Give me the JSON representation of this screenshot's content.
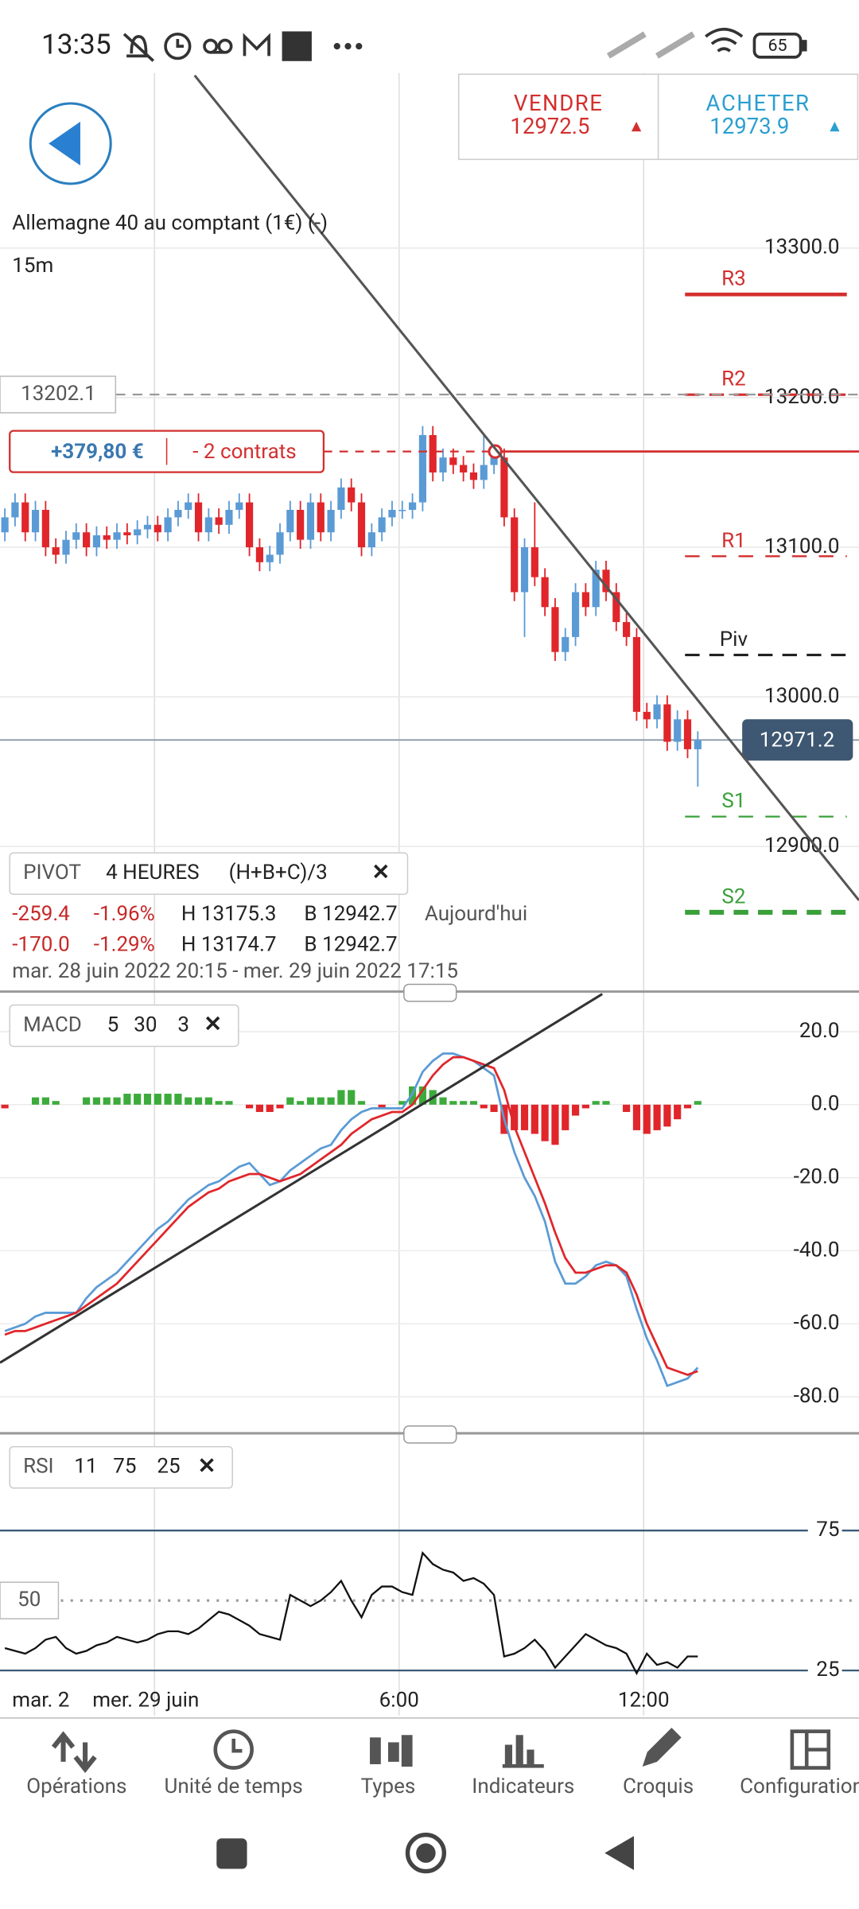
{
  "status_bar": {
    "time": "13:35",
    "battery": 65
  },
  "trade": {
    "sell_label": "VENDRE",
    "sell_price": 12972.5,
    "buy_label": "ACHETER",
    "buy_price": 12973.9
  },
  "chart": {
    "type": "candlestick",
    "title": "Allemagne 40 au comptant (1€) (-)",
    "timeframe": "15m",
    "ylim": [
      12803,
      13417
    ],
    "yticks": [
      {
        "value": 13300,
        "label": "13300.0"
      },
      {
        "value": 13200,
        "label": "13200.0"
      },
      {
        "value": 13100,
        "label": "13100.0"
      },
      {
        "value": 13000,
        "label": "13000.0"
      },
      {
        "value": 12900,
        "label": "12900.0"
      }
    ],
    "up_color": "#5b9bd5",
    "down_color": "#e0262b",
    "candles": {
      "open": [
        13110,
        13120,
        13130,
        13110,
        13125,
        13100,
        13095,
        13105,
        13110,
        13100,
        13108,
        13105,
        13110,
        13108,
        13112,
        13115,
        13110,
        13120,
        13125,
        13130,
        13110,
        13120,
        13115,
        13125,
        13130,
        13100,
        13090,
        13095,
        13110,
        13125,
        13105,
        13130,
        13110,
        13125,
        13140,
        13130,
        13100,
        13110,
        13120,
        13125,
        13125,
        13130,
        13175,
        13150,
        13160,
        13155,
        13150,
        13145,
        13155,
        13160,
        13120,
        13070,
        13100,
        13080,
        13060,
        13030,
        13040,
        13070,
        13060,
        13085,
        13070,
        13050,
        13040,
        12990,
        12985,
        12995,
        12970,
        12985,
        12965
      ],
      "high": [
        13126,
        13136,
        13136,
        13131,
        13131,
        13106,
        13111,
        13116,
        13116,
        13114,
        13114,
        13116,
        13116,
        13118,
        13121,
        13121,
        13126,
        13131,
        13136,
        13136,
        13126,
        13126,
        13131,
        13136,
        13136,
        13106,
        13101,
        13116,
        13131,
        13131,
        13136,
        13136,
        13131,
        13146,
        13146,
        13136,
        13116,
        13126,
        13131,
        13131,
        13136,
        13181,
        13181,
        13166,
        13166,
        13161,
        13156,
        13175,
        13166,
        13166,
        13126,
        13106,
        13130,
        13086,
        13066,
        13046,
        13076,
        13076,
        13091,
        13091,
        13076,
        13056,
        13046,
        12996,
        13001,
        13001,
        12991,
        12991,
        12977
      ],
      "low": [
        13104,
        13114,
        13104,
        13104,
        13094,
        13089,
        13089,
        13099,
        13094,
        13094,
        13099,
        13099,
        13102,
        13102,
        13106,
        13104,
        13104,
        13114,
        13119,
        13104,
        13104,
        13109,
        13109,
        13119,
        13094,
        13084,
        13084,
        13089,
        13104,
        13099,
        13099,
        13104,
        13104,
        13119,
        13124,
        13094,
        13094,
        13104,
        13114,
        13119,
        13119,
        13124,
        13144,
        13144,
        13149,
        13144,
        13139,
        13139,
        13149,
        13114,
        13064,
        13040,
        13074,
        13054,
        13024,
        13024,
        13034,
        13054,
        13054,
        13064,
        13044,
        13034,
        12984,
        12979,
        12979,
        12964,
        12964,
        12959,
        12940
      ],
      "close": [
        13120,
        13130,
        13110,
        13125,
        13100,
        13095,
        13105,
        13110,
        13100,
        13108,
        13105,
        13110,
        13108,
        13112,
        13115,
        13110,
        13120,
        13125,
        13130,
        13110,
        13120,
        13115,
        13125,
        13130,
        13100,
        13090,
        13095,
        13110,
        13125,
        13105,
        13130,
        13110,
        13125,
        13140,
        13130,
        13100,
        13110,
        13120,
        13125,
        13125,
        13130,
        13175,
        13150,
        13160,
        13155,
        13150,
        13145,
        13155,
        13160,
        13120,
        13070,
        13100,
        13080,
        13060,
        13030,
        13040,
        13070,
        13060,
        13085,
        13070,
        13050,
        13040,
        12990,
        12985,
        12995,
        12970,
        12985,
        12965,
        12971
      ]
    },
    "pivot_levels": [
      {
        "name": "R3",
        "value": 13269,
        "color": "#d32f2f",
        "style": "solid"
      },
      {
        "name": "R2",
        "value": 13202,
        "color": "#d32f2f",
        "style": "dashed"
      },
      {
        "name": "R1",
        "value": 13094,
        "color": "#d32f2f",
        "style": "dashed-light"
      },
      {
        "name": "Piv",
        "value": 13028,
        "color": "#222222",
        "style": "dashed"
      },
      {
        "name": "S1",
        "value": 12920,
        "color": "#3aa03a",
        "style": "dashed-light"
      },
      {
        "name": "S2",
        "value": 12856,
        "color": "#3aa03a",
        "style": "dashed-bold"
      }
    ],
    "reference_line": {
      "value": 13202.1
    },
    "position": {
      "value": 13164,
      "pnl": "+379,80 €",
      "contracts": "- 2 contrats"
    },
    "current_price": {
      "value": 12971.2
    },
    "pivot_legend": {
      "label": "PIVOT",
      "period": "4 HEURES",
      "formula": "(H+B+C)/3",
      "close": "✕",
      "rows": [
        [
          "-259.4",
          "-1.96%",
          "H 13175.3",
          "B 12942.7",
          "Aujourd'hui"
        ],
        [
          "-170.0",
          "-1.29%",
          "H 13174.7",
          "B 12942.7"
        ]
      ],
      "range": "mar. 28 juin 2022 20:15 - mer. 29 juin 2022 17:15"
    }
  },
  "macd": {
    "type": "macd",
    "label": "MACD",
    "params": [
      5,
      30,
      3
    ],
    "close": "✕",
    "ylim": [
      -90,
      30.3
    ],
    "yticks": [
      {
        "value": 20,
        "label": "20.0"
      },
      {
        "value": 0,
        "label": "0.0"
      },
      {
        "value": -20,
        "label": "-20.0"
      },
      {
        "value": -40,
        "label": "-40.0"
      },
      {
        "value": -60,
        "label": "-60.0"
      },
      {
        "value": -80,
        "label": "-80.0"
      }
    ],
    "macd_color": "#5b9bd5",
    "signal_color": "#e0262b",
    "positive_color": "#3cab3c",
    "negative_color": "#e0262b",
    "macd": [
      -62,
      -61,
      -60,
      -58,
      -57,
      -57,
      -57,
      -57,
      -53,
      -50,
      -48,
      -46,
      -43,
      -40,
      -37,
      -34,
      -32,
      -29,
      -26,
      -24,
      -22,
      -21,
      -19,
      -17,
      -16,
      -19,
      -22,
      -21,
      -18,
      -16,
      -14,
      -12,
      -11,
      -7,
      -4,
      -2,
      -1,
      -1,
      -1,
      -1,
      3,
      9,
      12,
      14,
      14,
      13,
      12,
      10,
      8,
      -4,
      -13,
      -20,
      -25,
      -32,
      -43,
      -49,
      -49,
      -47,
      -44,
      -43,
      -44,
      -47,
      -56,
      -64,
      -70,
      -77,
      -76,
      -75,
      -72
    ],
    "signal": [
      -63,
      -62,
      -62,
      -61,
      -60,
      -59,
      -58,
      -57,
      -55,
      -53,
      -51,
      -49,
      -46,
      -43,
      -40,
      -37,
      -34,
      -31,
      -28,
      -26,
      -24,
      -23,
      -21,
      -20,
      -19,
      -19,
      -20,
      -21,
      -20,
      -19,
      -17,
      -15,
      -13,
      -11,
      -8,
      -6,
      -4,
      -3,
      -2,
      -2,
      0,
      4,
      8,
      11,
      13,
      13,
      12,
      11,
      10,
      4,
      -6,
      -13,
      -20,
      -27,
      -35,
      -42,
      -46,
      -46,
      -45,
      -44,
      -44,
      -46,
      -52,
      -60,
      -66,
      -72,
      -73,
      -74,
      -73
    ],
    "histogram": [
      -1,
      0,
      0,
      2,
      2,
      1,
      0,
      0,
      2,
      2,
      2,
      2,
      3,
      3,
      3,
      3,
      3,
      3,
      2,
      2,
      2,
      1,
      1,
      0,
      -1,
      -2,
      -2,
      -1,
      2,
      1,
      2,
      2,
      2,
      4,
      4,
      1,
      0,
      -1,
      0,
      1,
      5,
      5,
      4,
      2,
      1,
      1,
      1,
      -1,
      -2,
      -8,
      -7,
      -7,
      -8,
      -10,
      -11,
      -7,
      -3,
      -1,
      1,
      1,
      0,
      -2,
      -7,
      -8,
      -7,
      -6,
      -4,
      -1,
      1
    ]
  },
  "rsi": {
    "type": "line",
    "label": "RSI",
    "params": [
      11,
      75,
      25
    ],
    "close": "✕",
    "ylim": [
      8.9,
      105.4
    ],
    "yticks": [
      25,
      75
    ],
    "mid_level": 50,
    "color": "#111111",
    "values": [
      33,
      32,
      31,
      33,
      36,
      37,
      33,
      31,
      32,
      34,
      35,
      37,
      36,
      35,
      36,
      38,
      39,
      39,
      38,
      40,
      43,
      46,
      45,
      43,
      41,
      38,
      37,
      36,
      52,
      50,
      48,
      50,
      53,
      57,
      50,
      44,
      52,
      55,
      55,
      53,
      52,
      67,
      63,
      61,
      60,
      57,
      58,
      56,
      52,
      30,
      31,
      33,
      36,
      32,
      26,
      30,
      34,
      38,
      36,
      34,
      33,
      31,
      24,
      31,
      27,
      28,
      26,
      30,
      30
    ]
  },
  "x_labels": [
    "mar. 2",
    "mer. 29 juin",
    "6:00",
    "12:00"
  ],
  "nav": [
    "Opérations",
    "Unité de temps",
    "Types",
    "Indicateurs",
    "Croquis",
    "Configuration"
  ]
}
